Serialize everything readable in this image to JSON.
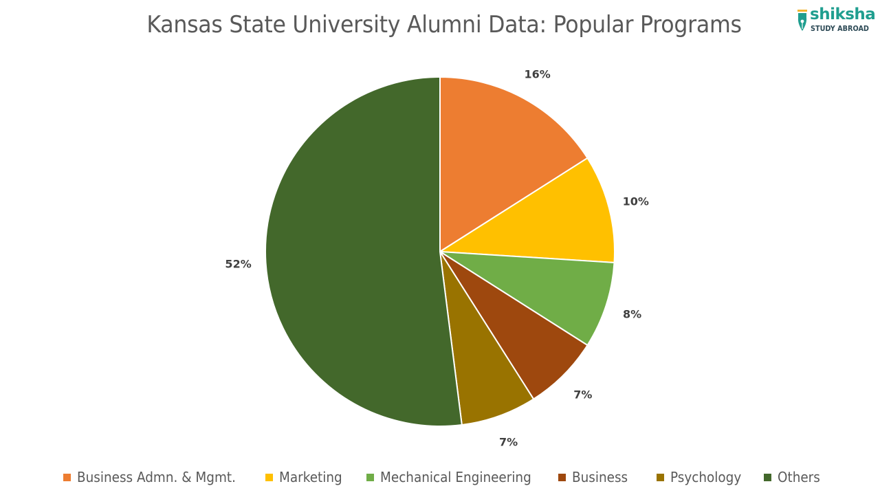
{
  "title": "Kansas State University Alumni Data: Popular Programs",
  "logo": {
    "brand": "shiksha",
    "tagline": "STUDY ABROAD",
    "brand_color": "#1f9e8f"
  },
  "chart_data": {
    "type": "pie",
    "title": "Kansas State University Alumni Data: Popular Programs",
    "categories": [
      "Business Admn. & Mgmt.",
      "Marketing",
      "Mechanical Engineering",
      "Business",
      "Psychology",
      "Others"
    ],
    "values": [
      16,
      10,
      8,
      7,
      7,
      52
    ],
    "labels": [
      "16%",
      "10%",
      "8%",
      "7%",
      "7%",
      "52%"
    ],
    "colors": [
      "#ED7D31",
      "#FFC000",
      "#70AD47",
      "#9E480E",
      "#997300",
      "#43682B"
    ],
    "start_angle": "12 o'clock",
    "direction": "clockwise",
    "legend_position": "bottom",
    "data_labels": "outside end"
  },
  "legend": {
    "items": [
      {
        "label": "Business Admn. & Mgmt.",
        "color": "#ED7D31"
      },
      {
        "label": "Marketing",
        "color": "#FFC000"
      },
      {
        "label": "Mechanical Engineering",
        "color": "#70AD47"
      },
      {
        "label": "Business",
        "color": "#9E480E"
      },
      {
        "label": "Psychology",
        "color": "#997300"
      },
      {
        "label": "Others",
        "color": "#43682B"
      }
    ]
  }
}
